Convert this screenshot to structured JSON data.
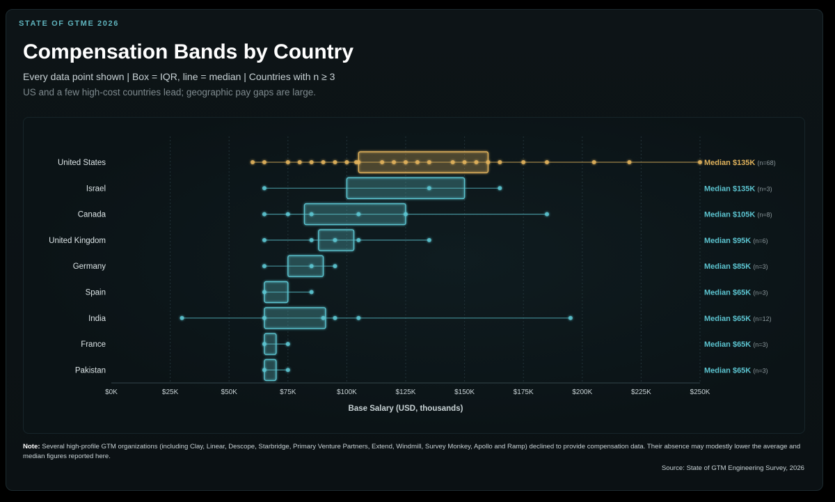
{
  "header": {
    "eyebrow": "STATE OF GTME 2026",
    "title": "Compensation Bands by Country",
    "subtitle": "Every data point shown | Box = IQR, line = median | Countries with n ≥ 3",
    "tagline": "US and a few high-cost countries lead; geographic pay gaps are large."
  },
  "footer": {
    "note_label": "Note:",
    "note_text": "Several high-profile GTM organizations (including Clay, Linear, Descope, Starbridge, Primary Venture Partners, Extend, Windmill, Survey Monkey, Apollo and Ramp) declined to provide compensation data. Their absence may modestly lower the average and median figures reported here.",
    "source": "Source: State of GTM Engineering Survey, 2026"
  },
  "colors": {
    "highlight": "#e0b25c",
    "default": "#5cc4d0"
  },
  "chart_data": {
    "type": "box",
    "xlabel": "Base Salary (USD, thousands)",
    "xlim": [
      0,
      250
    ],
    "x_ticks": [
      0,
      25,
      50,
      75,
      100,
      125,
      150,
      175,
      200,
      225,
      250
    ],
    "x_tick_labels": [
      "$0K",
      "$25K",
      "$50K",
      "$75K",
      "$100K",
      "$125K",
      "$150K",
      "$175K",
      "$200K",
      "$225K",
      "$250K"
    ],
    "grid": "vertical-dotted",
    "series": [
      {
        "name": "United States",
        "highlight": true,
        "q1": 105,
        "median": 135,
        "q3": 160,
        "min": 60,
        "max": 250,
        "n_label": "(n=68)",
        "median_label": "Median $135K",
        "points": [
          60,
          65,
          75,
          80,
          85,
          90,
          95,
          100,
          104,
          105,
          115,
          120,
          125,
          130,
          135,
          145,
          150,
          155,
          160,
          165,
          175,
          185,
          205,
          220,
          250
        ]
      },
      {
        "name": "Israel",
        "highlight": false,
        "q1": 100,
        "median": 135,
        "q3": 150,
        "min": 65,
        "max": 165,
        "n_label": "(n=3)",
        "median_label": "Median $135K",
        "points": [
          65,
          135,
          165
        ]
      },
      {
        "name": "Canada",
        "highlight": false,
        "q1": 82,
        "median": 105,
        "q3": 125,
        "min": 65,
        "max": 185,
        "n_label": "(n=8)",
        "median_label": "Median $105K",
        "points": [
          65,
          75,
          85,
          105,
          125,
          185
        ]
      },
      {
        "name": "United Kingdom",
        "highlight": false,
        "q1": 88,
        "median": 95,
        "q3": 103,
        "min": 65,
        "max": 135,
        "n_label": "(n=6)",
        "median_label": "Median $95K",
        "points": [
          65,
          85,
          95,
          105,
          135
        ]
      },
      {
        "name": "Germany",
        "highlight": false,
        "q1": 75,
        "median": 85,
        "q3": 90,
        "min": 65,
        "max": 95,
        "n_label": "(n=3)",
        "median_label": "Median $85K",
        "points": [
          65,
          85,
          95
        ]
      },
      {
        "name": "Spain",
        "highlight": false,
        "q1": 65,
        "median": 65,
        "q3": 75,
        "min": 65,
        "max": 85,
        "n_label": "(n=3)",
        "median_label": "Median $65K",
        "points": [
          65,
          85
        ]
      },
      {
        "name": "India",
        "highlight": false,
        "q1": 65,
        "median": 65,
        "q3": 91,
        "min": 30,
        "max": 195,
        "n_label": "(n=12)",
        "median_label": "Median $65K",
        "points": [
          30,
          65,
          90,
          95,
          105,
          195
        ]
      },
      {
        "name": "France",
        "highlight": false,
        "q1": 65,
        "median": 65,
        "q3": 70,
        "min": 65,
        "max": 75,
        "n_label": "(n=3)",
        "median_label": "Median $65K",
        "points": [
          65,
          75
        ]
      },
      {
        "name": "Pakistan",
        "highlight": false,
        "q1": 65,
        "median": 65,
        "q3": 70,
        "min": 65,
        "max": 75,
        "n_label": "(n=3)",
        "median_label": "Median $65K",
        "points": [
          65,
          75
        ]
      }
    ]
  }
}
